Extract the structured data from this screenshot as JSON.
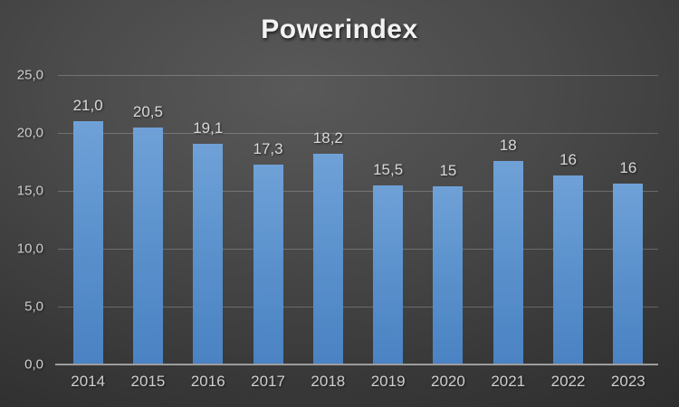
{
  "chart_data": {
    "type": "bar",
    "title": "Powerindex",
    "xlabel": "",
    "ylabel": "",
    "categories": [
      "2014",
      "2015",
      "2016",
      "2017",
      "2018",
      "2019",
      "2020",
      "2021",
      "2022",
      "2023"
    ],
    "values": [
      21.0,
      20.5,
      19.1,
      17.3,
      18.2,
      15.5,
      15.4,
      17.6,
      16.3,
      15.6
    ],
    "labels": [
      "21,0",
      "20,5",
      "19,1",
      "17,3",
      "18,2",
      "15,5",
      "15",
      "18",
      "16",
      "16"
    ],
    "ylim": [
      0,
      25
    ],
    "yticks": [
      {
        "value": 25,
        "label": "25,0"
      },
      {
        "value": 20,
        "label": "20,0"
      },
      {
        "value": 15,
        "label": "15,0"
      },
      {
        "value": 10,
        "label": "10,0"
      },
      {
        "value": 5,
        "label": "5,0"
      },
      {
        "value": 0,
        "label": "0,0"
      }
    ],
    "grid": true,
    "legend": "none",
    "colors": {
      "bar_top": "#6FA1D7",
      "bar_bottom": "#4A82C3",
      "background_center": "#595959",
      "background_edge": "#222222",
      "gridline": "rgba(255,255,255,0.22)",
      "axis_line": "#9d9d9d",
      "title_text": "#f2f2f2",
      "label_text": "#d9d9d9",
      "tick_text": "#cfcfcf"
    }
  }
}
